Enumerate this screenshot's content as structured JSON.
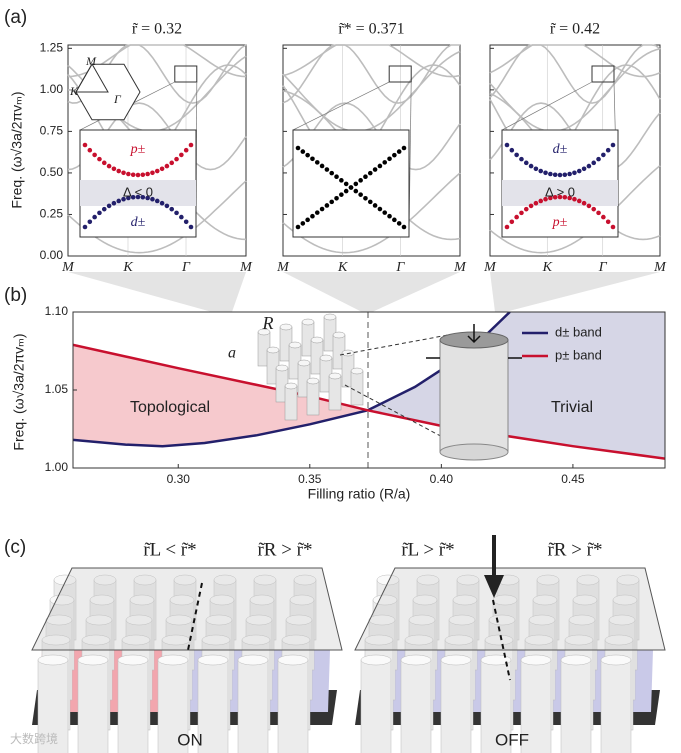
{
  "panel_labels": [
    "(a)",
    "(b)",
    "(c)"
  ],
  "panel_a": {
    "y_label": "Freq. (ω√3a/2πvₘ)",
    "ylim": [
      0,
      1.27
    ],
    "yticks": [
      {
        "value": 0,
        "label": "0.00"
      },
      0.25,
      {
        "value": 0.5,
        "label": "0.50"
      },
      0.75,
      {
        "value": 1,
        "label": "1.00"
      },
      1.25
    ],
    "x_labels": [
      "M",
      "K",
      "Γ",
      "M"
    ],
    "hexagon_labels": [
      "M",
      "K",
      "Γ"
    ],
    "plots": [
      {
        "title": "r̃ = 0.32",
        "inset": {
          "upper": "p±",
          "gap": "Δ < 0",
          "lower": "d±"
        }
      },
      {
        "title": "r̃* = 0.371"
      },
      {
        "title": "r̃ = 0.42",
        "inset": {
          "upper": "d±",
          "gap": "Δ > 0",
          "lower": "p±"
        }
      }
    ]
  },
  "chart_data": {
    "type": "line",
    "x_label": "Filling ratio (R/a)",
    "y_label": "Freq. (ω√3a/2πvₘ)",
    "xlim": [
      0.26,
      0.485
    ],
    "ylim": [
      1.0,
      1.1
    ],
    "xticks": [
      {
        "value": 0.3,
        "label": "0.30"
      },
      0.35,
      {
        "value": 0.4,
        "label": "0.40"
      },
      0.45
    ],
    "yticks": [
      {
        "value": 1.0,
        "label": "1.00"
      },
      1.05,
      {
        "value": 1.1,
        "label": "1.10"
      }
    ],
    "series": [
      {
        "name": "d± band",
        "color": "#23206b",
        "x": [
          0.26,
          0.28,
          0.294,
          0.31,
          0.33,
          0.35,
          0.372,
          0.39,
          0.41,
          0.426
        ],
        "values": [
          1.018,
          1.015,
          1.014,
          1.016,
          1.021,
          1.028,
          1.037,
          1.052,
          1.074,
          1.1
        ]
      },
      {
        "name": "p± band",
        "color": "#c8102e",
        "x": [
          0.26,
          0.3,
          0.35,
          0.372,
          0.4,
          0.45,
          0.485
        ],
        "values": [
          1.079,
          1.064,
          1.046,
          1.037,
          1.027,
          1.014,
          1.006
        ]
      }
    ],
    "region_labels": [
      "Topological",
      "Trivial"
    ],
    "inset_labels": [
      "R",
      "a"
    ]
  },
  "panel_c": {
    "left_labels": [
      "r̃L < r̃*",
      "r̃R > r̃*"
    ],
    "right_labels": [
      "r̃L > r̃*",
      "r̃R > r̃*"
    ],
    "states": [
      "ON",
      "OFF"
    ]
  },
  "watermark": "大数跨境"
}
